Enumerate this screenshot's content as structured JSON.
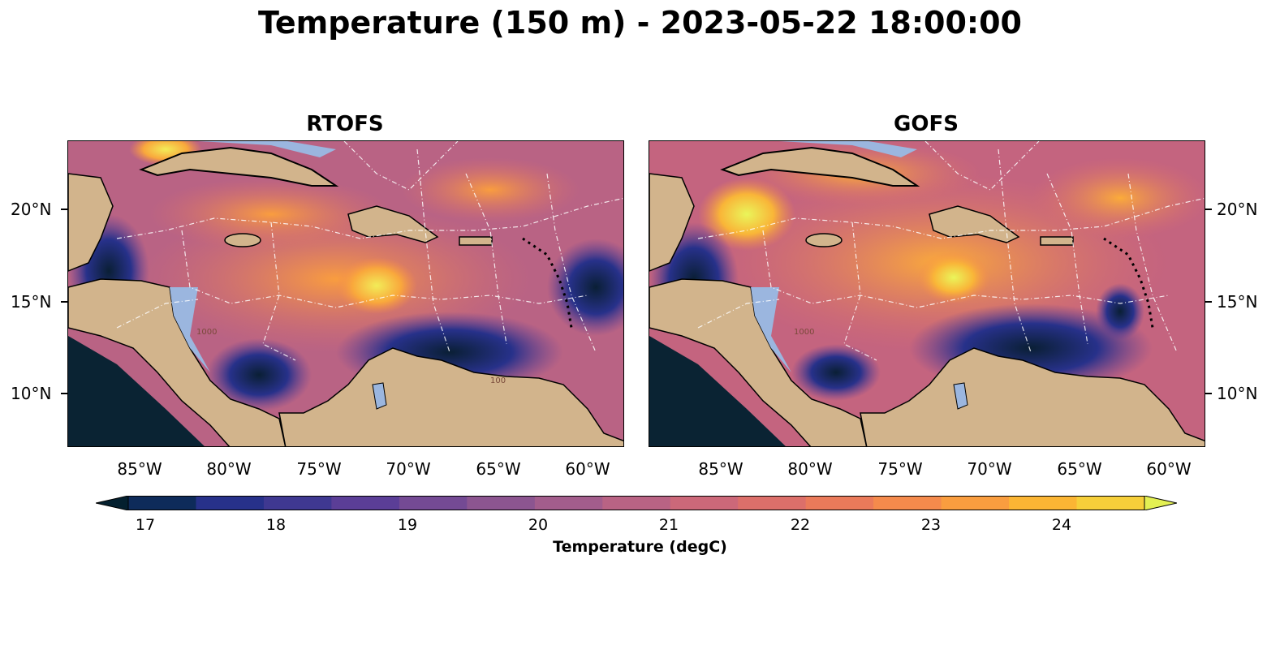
{
  "title": "Temperature (150 m) - 2023-05-22 18:00:00",
  "panels": [
    {
      "title": "RTOFS",
      "annotations": [
        "1000",
        "100"
      ]
    },
    {
      "title": "GOFS",
      "annotations": [
        "1000"
      ]
    }
  ],
  "axes": {
    "lat_ticks": [
      "20°N",
      "15°N",
      "10°N"
    ],
    "lon_ticks": [
      "85°W",
      "80°W",
      "75°W",
      "70°W",
      "65°W",
      "60°W"
    ]
  },
  "colorbar": {
    "label": "Temperature (degC)",
    "ticks": [
      "17",
      "18",
      "19",
      "20",
      "21",
      "22",
      "23",
      "24"
    ],
    "range": [
      16.5,
      24.5
    ],
    "extend": "both",
    "colors": [
      "#04202f",
      "#0e2b5a",
      "#27318a",
      "#3f3891",
      "#5b3e97",
      "#744a94",
      "#8c5590",
      "#a35d8c",
      "#b96384",
      "#cc6879",
      "#dc6f6a",
      "#ea7a5a",
      "#f48a4c",
      "#f99d3f",
      "#fbb534",
      "#f6cf3a",
      "#e3f053"
    ]
  },
  "map_colors": {
    "land": "#d2b48c",
    "shelf": "#9bb6df",
    "deep_pacific": "#0a2333",
    "atlantic": "#b05a86"
  }
}
